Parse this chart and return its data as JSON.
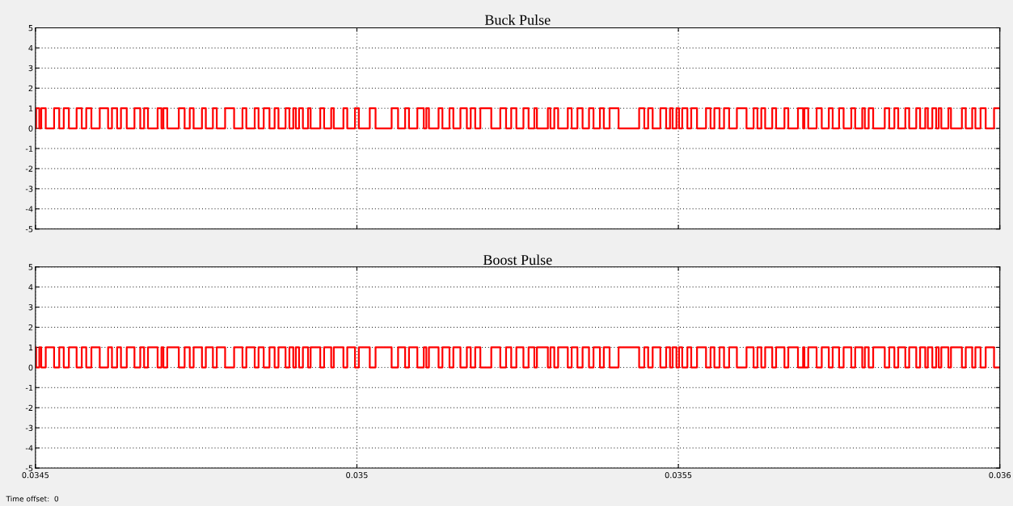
{
  "chart_data": [
    {
      "type": "step",
      "title": "Buck Pulse",
      "tick_labels": "y",
      "grid": true,
      "line_style": "solid",
      "xlim": [
        0.0345,
        0.036
      ],
      "xticks": [
        0.0345,
        0.035,
        0.0355,
        0.036
      ],
      "ylim": [
        -5,
        5
      ],
      "yticks": [
        -5,
        -4,
        -3,
        -2,
        -1,
        0,
        1,
        2,
        3,
        4,
        5
      ],
      "x": [
        0.0345,
        0.034501,
        0.034506,
        0.034509,
        0.034516,
        0.034529,
        0.034537,
        0.034544,
        0.034552,
        0.034564,
        0.034572,
        0.034579,
        0.034587,
        0.0346,
        0.034613,
        0.034619,
        0.034627,
        0.034633,
        0.034642,
        0.034654,
        0.034663,
        0.034669,
        0.034675,
        0.03469,
        0.034696,
        0.034699,
        0.034705,
        0.034723,
        0.034732,
        0.03474,
        0.034746,
        0.034759,
        0.034765,
        0.034776,
        0.034782,
        0.034795,
        0.034809,
        0.034822,
        0.034828,
        0.034841,
        0.034847,
        0.034855,
        0.034864,
        0.034872,
        0.034878,
        0.034889,
        0.034895,
        0.034901,
        0.034905,
        0.03491,
        0.034916,
        0.034924,
        0.034928,
        0.034943,
        0.034949,
        0.03496,
        0.034964,
        0.034979,
        0.034985,
        0.034997,
        0.035003,
        0.03502,
        0.035029,
        0.035054,
        0.035064,
        0.035075,
        0.035081,
        0.035094,
        0.035104,
        0.035108,
        0.035112,
        0.035127,
        0.035133,
        0.035144,
        0.03515,
        0.035161,
        0.035171,
        0.035177,
        0.035184,
        0.035192,
        0.035209,
        0.035223,
        0.035232,
        0.03524,
        0.035248,
        0.035259,
        0.035267,
        0.035276,
        0.03528,
        0.035297,
        0.035301,
        0.035307,
        0.035313,
        0.035328,
        0.035334,
        0.035343,
        0.035351,
        0.035361,
        0.035368,
        0.035378,
        0.035384,
        0.035393,
        0.035407,
        0.035439,
        0.035447,
        0.035453,
        0.03546,
        0.035472,
        0.035481,
        0.035487,
        0.035491,
        0.035497,
        0.035501,
        0.035506,
        0.035514,
        0.03552,
        0.035529,
        0.035543,
        0.03555,
        0.035556,
        0.035564,
        0.035571,
        0.035579,
        0.035591,
        0.035606,
        0.035617,
        0.035623,
        0.035629,
        0.035635,
        0.035646,
        0.035652,
        0.035665,
        0.035671,
        0.035686,
        0.035694,
        0.035696,
        0.035702,
        0.035715,
        0.035723,
        0.035734,
        0.03574,
        0.03575,
        0.035757,
        0.035769,
        0.035775,
        0.035786,
        0.03579,
        0.035796,
        0.035803,
        0.035821,
        0.035828,
        0.035836,
        0.035842,
        0.035853,
        0.035859,
        0.03587,
        0.035876,
        0.035884,
        0.035888,
        0.035895,
        0.035901,
        0.035905,
        0.035909,
        0.03592,
        0.035924,
        0.035941,
        0.035947,
        0.035957,
        0.035962,
        0.03597,
        0.035978,
        0.035991,
        0.036
      ],
      "series": [
        {
          "color": "#ff0000",
          "values": [
            0,
            1,
            0,
            1,
            0,
            1,
            0,
            1,
            0,
            1,
            0,
            1,
            0,
            1,
            0,
            1,
            0,
            1,
            0,
            1,
            0,
            1,
            0,
            1,
            0,
            1,
            0,
            1,
            0,
            1,
            0,
            1,
            0,
            1,
            0,
            1,
            0,
            1,
            0,
            1,
            0,
            1,
            0,
            1,
            0,
            1,
            0,
            1,
            0,
            1,
            0,
            1,
            0,
            1,
            0,
            1,
            0,
            1,
            0,
            1,
            0,
            1,
            0,
            1,
            0,
            1,
            0,
            1,
            0,
            1,
            0,
            1,
            0,
            1,
            0,
            1,
            0,
            1,
            0,
            1,
            0,
            1,
            0,
            1,
            0,
            1,
            0,
            1,
            0,
            1,
            0,
            1,
            0,
            1,
            0,
            1,
            0,
            1,
            0,
            1,
            0,
            1,
            0,
            1,
            0,
            1,
            0,
            1,
            0,
            1,
            0,
            1,
            0,
            1,
            0,
            1,
            0,
            1,
            0,
            1,
            0,
            1,
            0,
            1,
            0,
            1,
            0,
            1,
            0,
            1,
            0,
            1,
            0,
            1,
            0,
            1,
            0,
            1,
            0,
            1,
            0,
            1,
            0,
            1,
            0,
            1,
            0,
            1,
            0,
            1,
            0,
            1,
            0,
            1,
            0,
            1,
            0,
            1,
            0,
            1,
            0,
            1,
            0,
            1,
            0,
            1,
            0,
            1,
            0,
            1,
            0,
            1,
            1
          ]
        }
      ]
    },
    {
      "type": "step",
      "title": "Boost Pulse",
      "grid": true,
      "line_style": "solid",
      "xlim": [
        0.0345,
        0.036
      ],
      "xticks": [
        0.0345,
        0.035,
        0.0355,
        0.036
      ],
      "ylim": [
        -5,
        5
      ],
      "yticks": [
        -5,
        -4,
        -3,
        -2,
        -1,
        0,
        1,
        2,
        3,
        4,
        5
      ],
      "annotations": [
        "Time offset:  0"
      ],
      "x": [
        0.0345,
        0.034501,
        0.034506,
        0.034509,
        0.034516,
        0.034529,
        0.034537,
        0.034544,
        0.034552,
        0.034564,
        0.034572,
        0.034579,
        0.034587,
        0.0346,
        0.034613,
        0.034619,
        0.034627,
        0.034633,
        0.034642,
        0.034654,
        0.034663,
        0.034669,
        0.034675,
        0.03469,
        0.034696,
        0.034699,
        0.034705,
        0.034723,
        0.034732,
        0.03474,
        0.034746,
        0.034759,
        0.034765,
        0.034776,
        0.034782,
        0.034795,
        0.034809,
        0.034822,
        0.034828,
        0.034841,
        0.034847,
        0.034855,
        0.034864,
        0.034872,
        0.034878,
        0.034889,
        0.034895,
        0.034901,
        0.034905,
        0.03491,
        0.034916,
        0.034924,
        0.034928,
        0.034943,
        0.034949,
        0.03496,
        0.034964,
        0.034979,
        0.034985,
        0.034997,
        0.035003,
        0.03502,
        0.035029,
        0.035054,
        0.035064,
        0.035075,
        0.035081,
        0.035094,
        0.035104,
        0.035108,
        0.035112,
        0.035127,
        0.035133,
        0.035144,
        0.03515,
        0.035161,
        0.035171,
        0.035177,
        0.035184,
        0.035192,
        0.035209,
        0.035223,
        0.035232,
        0.03524,
        0.035248,
        0.035259,
        0.035267,
        0.035276,
        0.03528,
        0.035297,
        0.035301,
        0.035307,
        0.035313,
        0.035328,
        0.035334,
        0.035343,
        0.035351,
        0.035361,
        0.035368,
        0.035378,
        0.035384,
        0.035393,
        0.035407,
        0.035439,
        0.035447,
        0.035453,
        0.03546,
        0.035472,
        0.035481,
        0.035487,
        0.035491,
        0.035497,
        0.035501,
        0.035506,
        0.035514,
        0.03552,
        0.035529,
        0.035543,
        0.03555,
        0.035556,
        0.035564,
        0.035571,
        0.035579,
        0.035591,
        0.035606,
        0.035617,
        0.035623,
        0.035629,
        0.035635,
        0.035646,
        0.035652,
        0.035665,
        0.035671,
        0.035686,
        0.035694,
        0.035696,
        0.035702,
        0.035715,
        0.035723,
        0.035734,
        0.03574,
        0.03575,
        0.035757,
        0.035769,
        0.035775,
        0.035786,
        0.03579,
        0.035796,
        0.035803,
        0.035821,
        0.035828,
        0.035836,
        0.035842,
        0.035853,
        0.035859,
        0.03587,
        0.035876,
        0.035884,
        0.035888,
        0.035895,
        0.035901,
        0.035905,
        0.035909,
        0.03592,
        0.035924,
        0.035941,
        0.035947,
        0.035957,
        0.035962,
        0.03597,
        0.035978,
        0.035991,
        0.036
      ],
      "series": [
        {
          "color": "#ff0000",
          "values": [
            1,
            0,
            1,
            0,
            1,
            0,
            1,
            0,
            1,
            0,
            1,
            0,
            1,
            0,
            1,
            0,
            1,
            0,
            1,
            0,
            1,
            0,
            1,
            0,
            1,
            0,
            1,
            0,
            1,
            0,
            1,
            0,
            1,
            0,
            1,
            0,
            1,
            0,
            1,
            0,
            1,
            0,
            1,
            0,
            1,
            0,
            1,
            0,
            1,
            0,
            1,
            0,
            1,
            0,
            1,
            0,
            1,
            0,
            1,
            0,
            1,
            0,
            1,
            0,
            1,
            0,
            1,
            0,
            1,
            0,
            1,
            0,
            1,
            0,
            1,
            0,
            1,
            0,
            1,
            0,
            1,
            0,
            1,
            0,
            1,
            0,
            1,
            0,
            1,
            0,
            1,
            0,
            1,
            0,
            1,
            0,
            1,
            0,
            1,
            0,
            1,
            0,
            1,
            0,
            1,
            0,
            1,
            0,
            1,
            0,
            1,
            0,
            1,
            0,
            1,
            0,
            1,
            0,
            1,
            0,
            1,
            0,
            1,
            0,
            1,
            0,
            1,
            0,
            1,
            0,
            1,
            0,
            1,
            0,
            1,
            0,
            1,
            0,
            1,
            0,
            1,
            0,
            1,
            0,
            1,
            0,
            1,
            0,
            1,
            0,
            1,
            0,
            1,
            0,
            1,
            0,
            1,
            0,
            1,
            0,
            1,
            0,
            1,
            0,
            1,
            0,
            1,
            0,
            1,
            0,
            1,
            0,
            0
          ]
        }
      ]
    }
  ]
}
